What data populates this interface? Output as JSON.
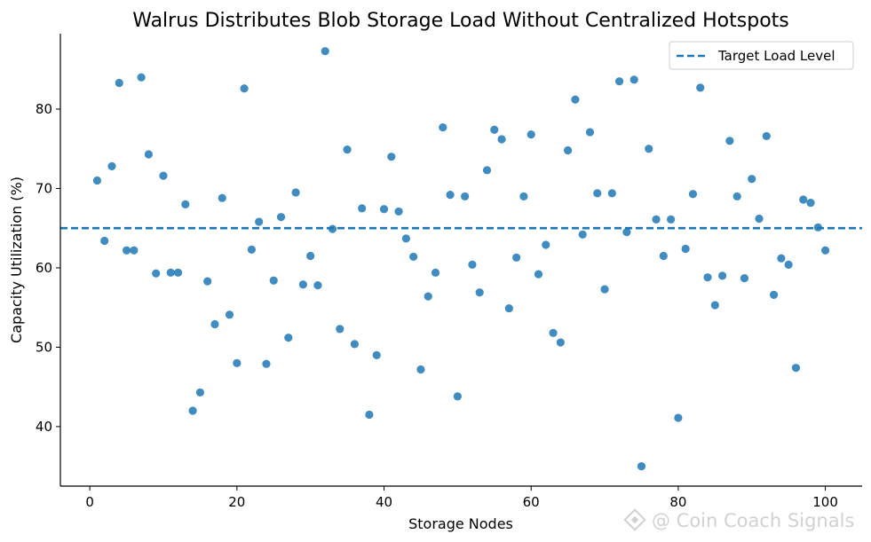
{
  "chart_data": {
    "type": "scatter",
    "title": "Walrus Distributes Blob Storage Load Without Centralized Hotspots",
    "xlabel": "Storage Nodes",
    "ylabel": "Capacity Utilization (%)",
    "xlim": [
      -4,
      105
    ],
    "ylim": [
      32.5,
      89.5
    ],
    "xticks": [
      0,
      20,
      40,
      60,
      80,
      100
    ],
    "yticks": [
      40,
      50,
      60,
      70,
      80
    ],
    "point_color": "#1f77b4",
    "legend": {
      "placement": "top-right",
      "label": "Target Load Level"
    },
    "target_line": {
      "label": "Target Load Level",
      "y": 65,
      "style": "dashed",
      "color": "#1f77b4"
    },
    "x": [
      1,
      2,
      3,
      4,
      5,
      6,
      7,
      8,
      9,
      10,
      11,
      12,
      13,
      14,
      15,
      16,
      17,
      18,
      19,
      20,
      21,
      22,
      23,
      24,
      25,
      26,
      27,
      28,
      29,
      30,
      31,
      32,
      33,
      34,
      35,
      36,
      37,
      38,
      39,
      40,
      41,
      42,
      43,
      44,
      45,
      46,
      47,
      48,
      49,
      50,
      51,
      52,
      53,
      54,
      55,
      56,
      57,
      58,
      59,
      60,
      61,
      62,
      63,
      64,
      65,
      66,
      67,
      68,
      69,
      70,
      71,
      72,
      73,
      74,
      75,
      76,
      77,
      78,
      79,
      80,
      81,
      82,
      83,
      84,
      85,
      86,
      87,
      88,
      89,
      90,
      91,
      92,
      93,
      94,
      95,
      96,
      97,
      98,
      99,
      100
    ],
    "y": [
      71.0,
      63.4,
      72.8,
      83.3,
      62.2,
      62.2,
      84.0,
      74.3,
      59.3,
      71.6,
      59.4,
      59.4,
      68.0,
      42.0,
      44.3,
      58.3,
      52.9,
      68.8,
      54.1,
      48.0,
      82.6,
      62.3,
      65.8,
      47.9,
      58.4,
      66.4,
      51.2,
      69.5,
      57.9,
      61.5,
      57.8,
      87.3,
      64.9,
      52.3,
      74.9,
      50.4,
      67.5,
      41.5,
      49.0,
      67.4,
      74.0,
      67.1,
      63.7,
      61.4,
      47.2,
      56.4,
      59.4,
      77.7,
      69.2,
      43.8,
      69.0,
      60.4,
      56.9,
      72.3,
      77.4,
      76.2,
      54.9,
      61.3,
      69.0,
      76.8,
      59.2,
      62.9,
      51.8,
      50.6,
      74.8,
      81.2,
      64.2,
      77.1,
      69.4,
      57.3,
      69.4,
      83.5,
      64.5,
      83.7,
      35.0,
      75.0,
      66.1,
      61.5,
      66.1,
      41.1,
      62.4,
      69.3,
      82.7,
      58.8,
      55.3,
      59.0,
      76.0,
      69.0,
      58.7,
      71.2,
      66.2,
      76.6,
      56.6,
      61.2,
      60.4,
      47.4,
      68.6,
      68.2,
      65.1,
      62.2
    ]
  },
  "watermark": {
    "text": "@ Coin Coach Signals",
    "icon": "binance-diamond-icon"
  }
}
